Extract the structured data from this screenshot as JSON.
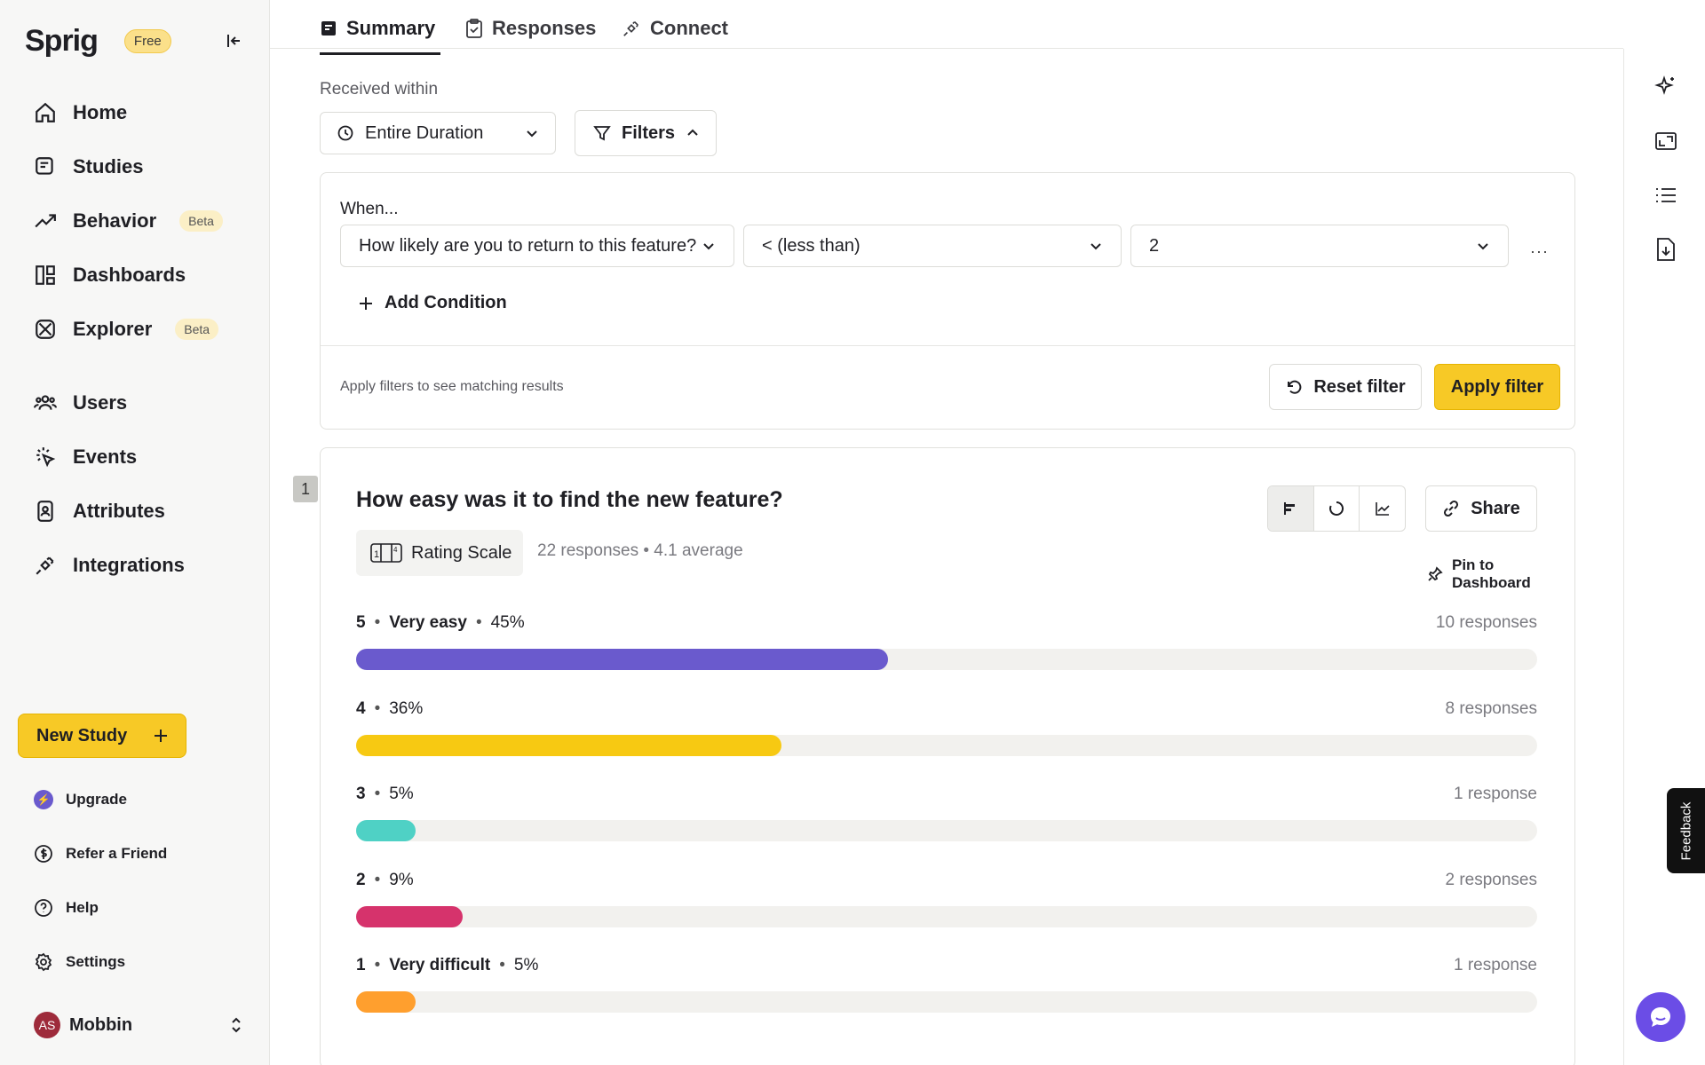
{
  "sidebar": {
    "logo": "Sprig",
    "plan_badge": "Free",
    "nav": [
      {
        "label": "Home",
        "icon": "home-icon"
      },
      {
        "label": "Studies",
        "icon": "studies-icon"
      },
      {
        "label": "Behavior",
        "icon": "trending-up-icon",
        "badge": "Beta"
      },
      {
        "label": "Dashboards",
        "icon": "dashboard-icon"
      },
      {
        "label": "Explorer",
        "icon": "explorer-icon",
        "badge": "Beta"
      }
    ],
    "nav2": [
      {
        "label": "Users",
        "icon": "users-icon"
      },
      {
        "label": "Events",
        "icon": "events-icon"
      },
      {
        "label": "Attributes",
        "icon": "attributes-icon"
      },
      {
        "label": "Integrations",
        "icon": "plug-icon"
      }
    ],
    "new_study": "New Study",
    "sub_nav": [
      {
        "label": "Upgrade",
        "icon": "upgrade-icon"
      },
      {
        "label": "Refer a Friend",
        "icon": "dollar-icon"
      },
      {
        "label": "Help",
        "icon": "help-icon"
      },
      {
        "label": "Settings",
        "icon": "gear-icon"
      }
    ],
    "user": {
      "initials": "AS",
      "name": "Mobbin"
    }
  },
  "tabs": [
    {
      "label": "Summary",
      "active": true
    },
    {
      "label": "Responses"
    },
    {
      "label": "Connect"
    }
  ],
  "filters": {
    "received_label": "Received within",
    "duration": "Entire Duration",
    "filters_label": "Filters",
    "when_label": "When...",
    "question_select": "How likely are you to return to this feature?",
    "operator_select": "< (less than)",
    "value_select": "2",
    "add_condition": "Add Condition",
    "hint": "Apply filters to see matching results",
    "reset": "Reset filter",
    "apply": "Apply filter"
  },
  "question": {
    "number": "1",
    "title": "How easy was it to find the new feature?",
    "type": "Rating Scale",
    "responses": "22 responses",
    "average": "4.1 average",
    "share": "Share",
    "pin": "Pin to Dashboard",
    "rows": [
      {
        "score": "5",
        "label": "Very easy",
        "pct": "45%",
        "count": "10 responses",
        "fraction": 0.45,
        "color": "#6a5acd"
      },
      {
        "score": "4",
        "label": "",
        "pct": "36%",
        "count": "8 responses",
        "fraction": 0.36,
        "color": "#f7c912"
      },
      {
        "score": "3",
        "label": "",
        "pct": "5%",
        "count": "1 response",
        "fraction": 0.05,
        "color": "#4fd1c5"
      },
      {
        "score": "2",
        "label": "",
        "pct": "9%",
        "count": "2 responses",
        "fraction": 0.09,
        "color": "#d6336c"
      },
      {
        "score": "1",
        "label": "Very difficult",
        "pct": "5%",
        "count": "1 response",
        "fraction": 0.05,
        "color": "#ff9f2e"
      }
    ]
  },
  "feedback_tab": "Feedback"
}
